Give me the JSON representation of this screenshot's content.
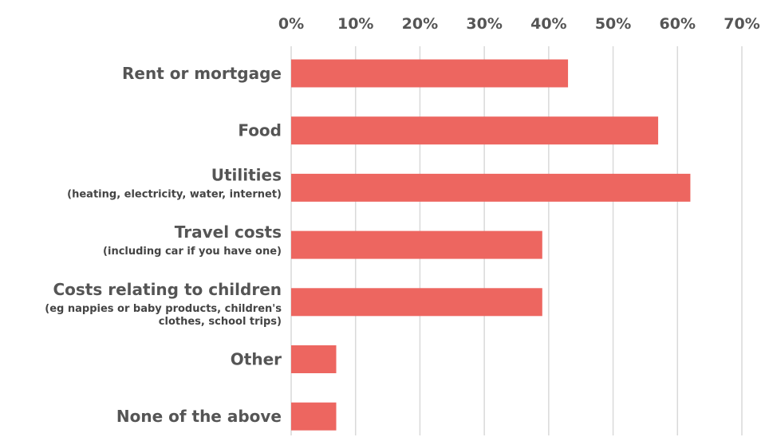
{
  "chart_data": {
    "type": "bar",
    "orientation": "horizontal",
    "categories": [
      {
        "label": "Rent or mortgage",
        "sublabel": []
      },
      {
        "label": "Food",
        "sublabel": []
      },
      {
        "label": "Utilities",
        "sublabel": [
          "(heating, electricity, water, internet)"
        ]
      },
      {
        "label": "Travel costs",
        "sublabel": [
          "(including car if you have one)"
        ]
      },
      {
        "label": "Costs relating to children",
        "sublabel": [
          "(eg nappies or baby products, children's",
          "clothes, school trips)"
        ]
      },
      {
        "label": "Other",
        "sublabel": []
      },
      {
        "label": "None of the above",
        "sublabel": []
      }
    ],
    "values": [
      43,
      57,
      62,
      39,
      39,
      7,
      7
    ],
    "xticks": [
      "0%",
      "10%",
      "20%",
      "30%",
      "40%",
      "50%",
      "60%",
      "70%"
    ],
    "xlim": [
      0,
      70
    ],
    "x_axis_position": "top",
    "grid": true,
    "bar_color": "#ed6660",
    "grid_color": "#d9d9d9",
    "text_color": "#555555"
  }
}
